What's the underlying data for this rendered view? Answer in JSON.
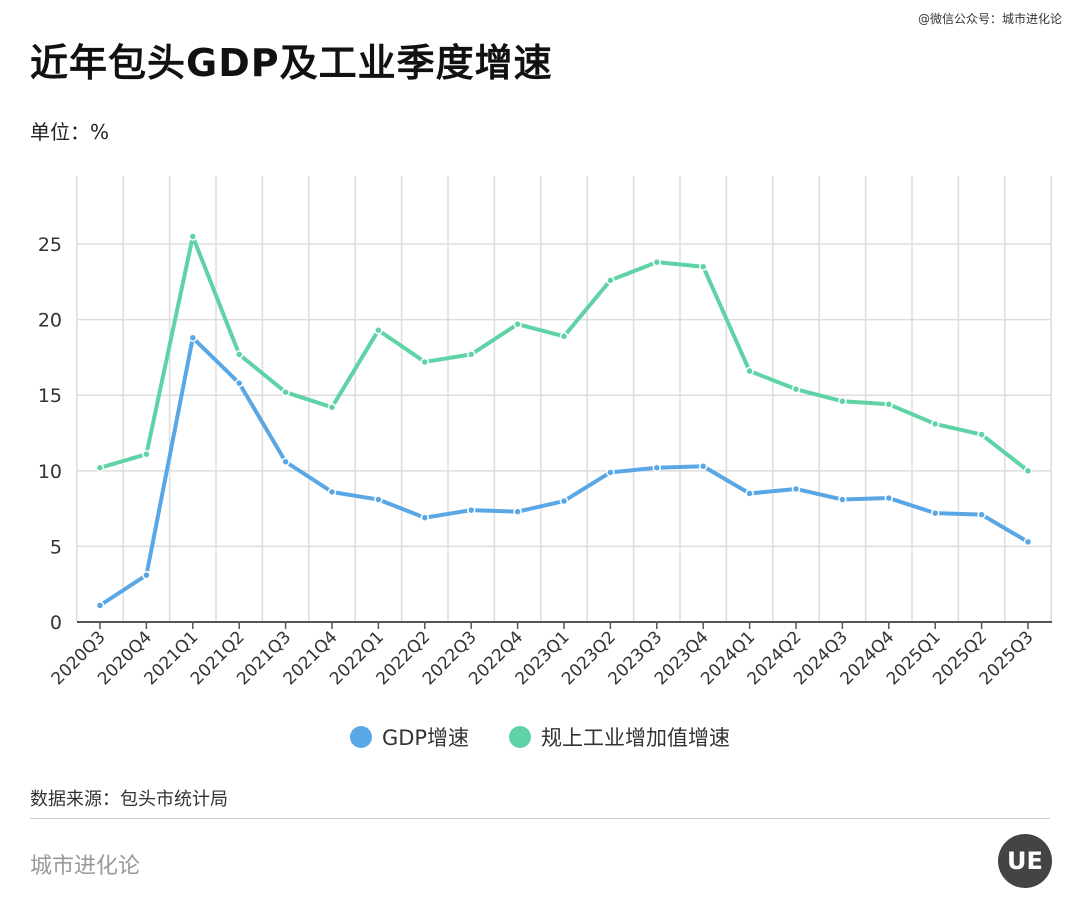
{
  "credit": "@微信公众号：城市进化论",
  "title": "近年包头GDP及工业季度增速",
  "unit": "单位：%",
  "source": "数据来源：包头市统计局",
  "brand": "城市进化论",
  "logo_text": "UE",
  "colors": {
    "gdp": "#5aa7e6",
    "industry": "#5fd3a5",
    "grid": "#dddddd",
    "axis": "#555555"
  },
  "chart_data": {
    "type": "line",
    "title": "近年包头GDP及工业季度增速",
    "ylabel": "单位：%",
    "xlabel": "",
    "ylim": [
      0,
      29.5
    ],
    "yticks": [
      0,
      5,
      10,
      15,
      20,
      25
    ],
    "grid": true,
    "legend": "bottom",
    "categories": [
      "2020Q3",
      "2020Q4",
      "2021Q1",
      "2021Q2",
      "2021Q3",
      "2021Q4",
      "2022Q1",
      "2022Q2",
      "2022Q3",
      "2022Q4",
      "2023Q1",
      "2023Q2",
      "2023Q3",
      "2023Q4",
      "2024Q1",
      "2024Q2",
      "2024Q3",
      "2024Q4",
      "2025Q1",
      "2025Q2",
      "2025Q3"
    ],
    "series": [
      {
        "name": "GDP增速",
        "color": "#5aa7e6",
        "values": [
          1.1,
          3.1,
          18.8,
          15.8,
          10.6,
          8.6,
          8.1,
          6.9,
          7.4,
          7.3,
          8.0,
          9.9,
          10.2,
          10.3,
          8.5,
          8.8,
          8.1,
          8.2,
          7.2,
          7.1,
          5.3
        ]
      },
      {
        "name": "规上工业增加值增速",
        "color": "#5fd3a5",
        "values": [
          10.2,
          11.1,
          25.5,
          17.7,
          15.2,
          14.2,
          19.3,
          17.2,
          17.7,
          19.7,
          18.9,
          22.6,
          23.8,
          23.5,
          16.6,
          15.4,
          14.6,
          14.4,
          13.1,
          12.4,
          10.0
        ]
      }
    ]
  }
}
